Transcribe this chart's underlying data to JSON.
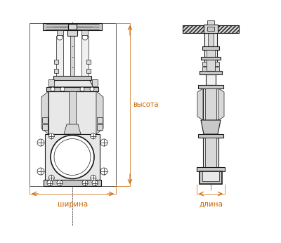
{
  "bg_color": "#ffffff",
  "line_color": "#1a1a1a",
  "dim_color": "#c86400",
  "label_ширина": "ширина",
  "label_длина": "длина",
  "label_высота": "высота",
  "figsize": [
    4.0,
    3.46
  ],
  "dpi": 100
}
